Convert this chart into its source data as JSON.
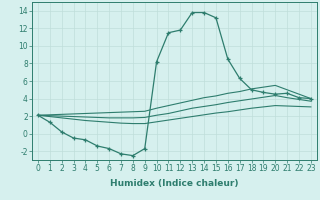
{
  "x": [
    0,
    1,
    2,
    3,
    4,
    5,
    6,
    7,
    8,
    9,
    10,
    11,
    12,
    13,
    14,
    15,
    16,
    17,
    18,
    19,
    20,
    21,
    22,
    23
  ],
  "y_main": [
    2.1,
    1.3,
    0.2,
    -0.5,
    -0.7,
    -1.4,
    -1.7,
    -2.3,
    -2.5,
    -1.7,
    8.2,
    11.5,
    11.8,
    13.8,
    13.8,
    13.2,
    8.5,
    6.3,
    5.0,
    4.7,
    4.5,
    4.6,
    4.1,
    4.0
  ],
  "y_upper": [
    2.1,
    2.15,
    2.2,
    2.25,
    2.3,
    2.35,
    2.4,
    2.45,
    2.5,
    2.55,
    2.9,
    3.2,
    3.5,
    3.8,
    4.1,
    4.3,
    4.6,
    4.8,
    5.1,
    5.3,
    5.5,
    5.0,
    4.5,
    4.0
  ],
  "y_mid": [
    2.1,
    2.05,
    2.0,
    1.95,
    1.9,
    1.85,
    1.8,
    1.8,
    1.8,
    1.85,
    2.1,
    2.3,
    2.6,
    2.9,
    3.1,
    3.3,
    3.55,
    3.75,
    3.95,
    4.15,
    4.35,
    4.1,
    3.9,
    3.7
  ],
  "y_lower": [
    2.1,
    1.95,
    1.8,
    1.65,
    1.5,
    1.4,
    1.3,
    1.2,
    1.15,
    1.15,
    1.35,
    1.55,
    1.75,
    1.95,
    2.15,
    2.35,
    2.5,
    2.7,
    2.9,
    3.05,
    3.2,
    3.15,
    3.1,
    3.05
  ],
  "color": "#2e7d6e",
  "bg_color": "#d6f0ee",
  "grid_color": "#c0deda",
  "xlabel": "Humidex (Indice chaleur)",
  "xlim": [
    -0.5,
    23.5
  ],
  "ylim": [
    -3,
    15
  ],
  "yticks": [
    -2,
    0,
    2,
    4,
    6,
    8,
    10,
    12,
    14
  ],
  "xticks": [
    0,
    1,
    2,
    3,
    4,
    5,
    6,
    7,
    8,
    9,
    10,
    11,
    12,
    13,
    14,
    15,
    16,
    17,
    18,
    19,
    20,
    21,
    22,
    23
  ],
  "xlabel_fontsize": 6.5,
  "tick_fontsize": 5.5
}
